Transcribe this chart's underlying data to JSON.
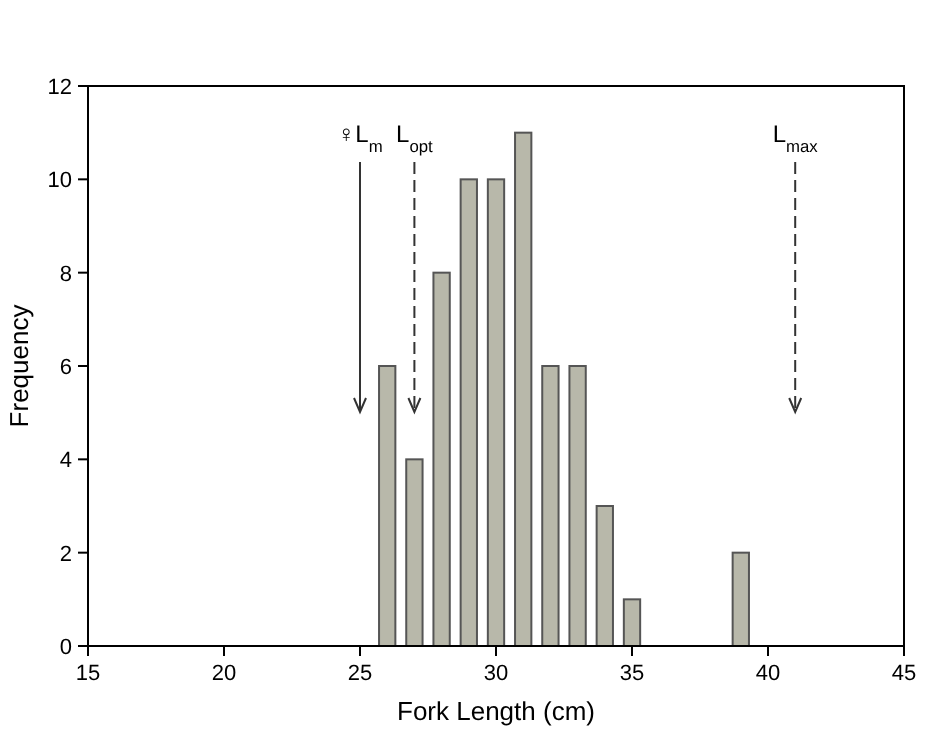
{
  "chart_data": {
    "type": "bar",
    "xlabel": "Fork Length (cm)",
    "ylabel": "Frequency",
    "x": [
      26,
      27,
      28,
      29,
      30,
      31,
      32,
      33,
      34,
      35,
      39
    ],
    "values": [
      6,
      4,
      8,
      10,
      10,
      11,
      6,
      6,
      3,
      1,
      2
    ],
    "color": "#b8b8aa",
    "xlim": [
      15,
      45
    ],
    "xticks": [
      15,
      20,
      25,
      30,
      35,
      40,
      45
    ],
    "ylim": [
      0,
      12
    ],
    "yticks": [
      0,
      2,
      4,
      6,
      8,
      10,
      12
    ],
    "grid": false,
    "ref_lines": [
      {
        "axis": "x",
        "value": 25,
        "label": "♀L$_{m}$",
        "line_style": "solid"
      },
      {
        "axis": "x",
        "value": 27,
        "label": "L$_{opt}$",
        "line_style": "dashed"
      },
      {
        "axis": "x",
        "value": 41,
        "label": "L$_{max}$",
        "line_style": "dashed"
      }
    ]
  }
}
